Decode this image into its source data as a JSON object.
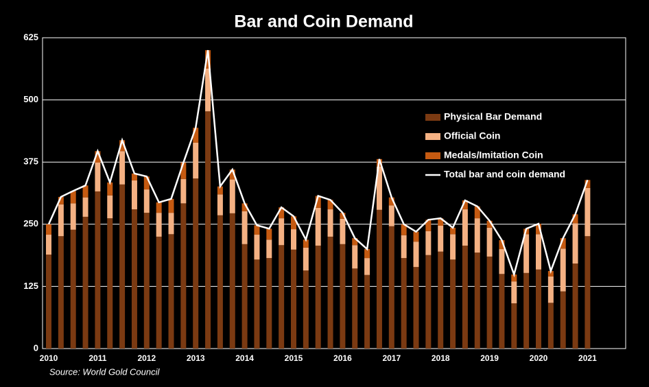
{
  "chart_data": {
    "type": "bar",
    "stacked": true,
    "title": "Bar and Coin Demand",
    "source": "Source: World Gold Council",
    "categories": [
      "2010",
      null,
      null,
      null,
      "2011",
      null,
      null,
      null,
      "2012",
      null,
      null,
      null,
      "2013",
      null,
      null,
      null,
      "2014",
      null,
      null,
      null,
      "2015",
      null,
      null,
      null,
      "2016",
      null,
      null,
      null,
      "2017",
      null,
      null,
      null,
      "2018",
      null,
      null,
      null,
      "2019",
      null,
      null,
      null,
      "2020",
      null,
      null,
      null,
      "2021"
    ],
    "series": [
      {
        "name": "Physical Bar Demand",
        "color": "#7b3a12",
        "values": [
          189,
          226,
          239,
          265,
          316,
          262,
          330,
          280,
          273,
          225,
          230,
          292,
          342,
          477,
          268,
          272,
          210,
          179,
          182,
          208,
          199,
          157,
          207,
          225,
          210,
          161,
          148,
          279,
          246,
          182,
          164,
          188,
          195,
          179,
          207,
          193,
          185,
          150,
          91,
          152,
          159,
          92,
          115,
          171,
          226
        ]
      },
      {
        "name": "Official Coin",
        "color": "#f4b183",
        "values": [
          40,
          64,
          53,
          39,
          58,
          46,
          67,
          58,
          47,
          48,
          43,
          49,
          72,
          86,
          42,
          68,
          66,
          50,
          37,
          54,
          41,
          46,
          76,
          55,
          51,
          47,
          34,
          87,
          42,
          46,
          51,
          48,
          52,
          51,
          73,
          69,
          58,
          50,
          44,
          78,
          71,
          53,
          86,
          81,
          97
        ]
      },
      {
        "name": "Medals/Imitation Coin",
        "color": "#c55a11",
        "values": [
          21,
          15,
          25,
          24,
          23,
          26,
          22,
          14,
          26,
          21,
          28,
          33,
          30,
          37,
          16,
          20,
          16,
          19,
          22,
          22,
          26,
          16,
          24,
          19,
          12,
          14,
          18,
          15,
          16,
          22,
          20,
          23,
          15,
          13,
          18,
          24,
          14,
          18,
          14,
          11,
          21,
          11,
          21,
          18,
          16
        ]
      },
      {
        "name": "Total bar and coin demand",
        "type": "line",
        "color": "#ffffff",
        "values": [
          250,
          305,
          317,
          328,
          397,
          334,
          419,
          352,
          346,
          294,
          301,
          374,
          444,
          600,
          326,
          360,
          292,
          248,
          241,
          284,
          266,
          219,
          307,
          299,
          273,
          222,
          200,
          381,
          304,
          250,
          235,
          259,
          262,
          243,
          298,
          286,
          257,
          218,
          149,
          241,
          251,
          156,
          222,
          270,
          339
        ]
      }
    ],
    "ylim": [
      0,
      625
    ],
    "yticks": [
      0,
      125,
      250,
      375,
      500,
      625
    ],
    "grid": true
  }
}
